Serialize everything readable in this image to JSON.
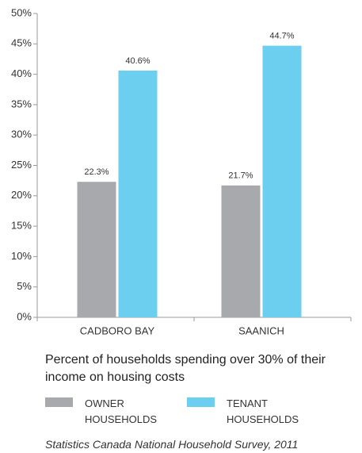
{
  "chart_data": {
    "type": "bar",
    "categories": [
      "CADBORO BAY",
      "SAANICH"
    ],
    "series": [
      {
        "name": "OWNER HOUSEHOLDS",
        "color": "#a7a9ac",
        "values": [
          22.3,
          21.7
        ],
        "value_labels": [
          "22.3%",
          "21.7%"
        ]
      },
      {
        "name": "TENANT HOUSEHOLDS",
        "color": "#6dcff0",
        "values": [
          40.6,
          44.7
        ],
        "value_labels": [
          "40.6%",
          "44.7%"
        ]
      }
    ],
    "ylim": [
      0,
      50
    ],
    "yticks": [
      {
        "value": 0,
        "label": "0%"
      },
      {
        "value": 5,
        "label": "5%"
      },
      {
        "value": 10,
        "label": "10%"
      },
      {
        "value": 15,
        "label": "15%"
      },
      {
        "value": 20,
        "label": "20%"
      },
      {
        "value": 25,
        "label": "25%"
      },
      {
        "value": 30,
        "label": "30%"
      },
      {
        "value": 35,
        "label": "35%"
      },
      {
        "value": 40,
        "label": "40%"
      },
      {
        "value": 45,
        "label": "45%"
      },
      {
        "value": 50,
        "label": "50%"
      }
    ],
    "xlabel": "Percent of households spending over 30% of their income on housing costs",
    "source": "Statistics Canada National Household Survey, 2011",
    "grid": false
  }
}
